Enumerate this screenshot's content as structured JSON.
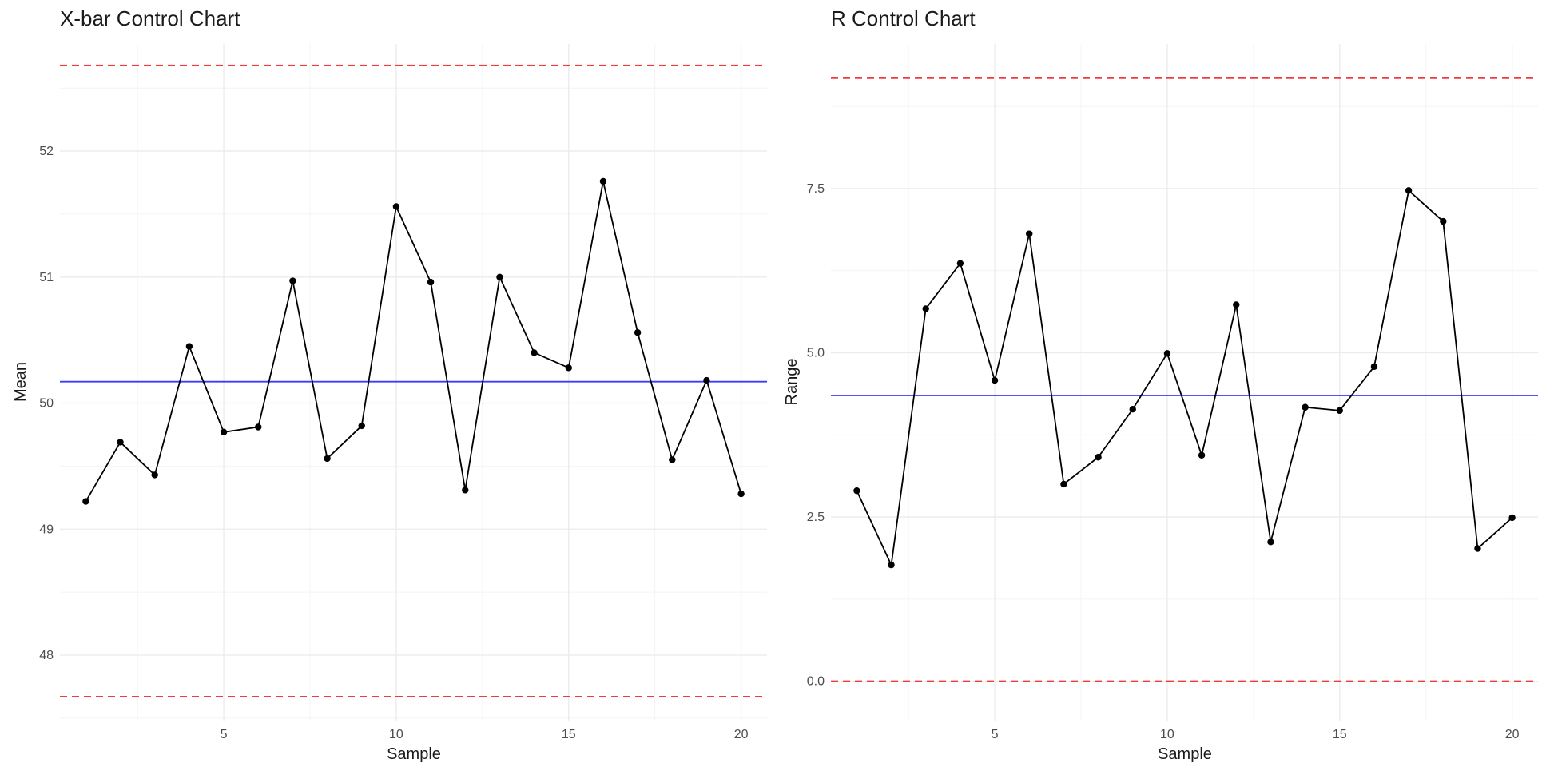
{
  "chart_data": [
    {
      "type": "line",
      "title": "X-bar Control Chart",
      "xlabel": "Sample",
      "ylabel": "Mean",
      "xlim": [
        0.25,
        20.75
      ],
      "ylim": [
        47.48,
        52.85
      ],
      "x_ticks": [
        5,
        10,
        15,
        20
      ],
      "x_tick_labels": [
        "5",
        "10",
        "15",
        "20"
      ],
      "y_ticks": [
        48,
        49,
        50,
        51,
        52
      ],
      "y_tick_labels": [
        "48",
        "49",
        "50",
        "51",
        "52"
      ],
      "grid": true,
      "x": [
        1,
        2,
        3,
        4,
        5,
        6,
        7,
        8,
        9,
        10,
        11,
        12,
        13,
        14,
        15,
        16,
        17,
        18,
        19,
        20
      ],
      "series": [
        {
          "values": [
            49.22,
            49.69,
            49.43,
            50.45,
            49.77,
            49.81,
            50.97,
            49.56,
            49.82,
            51.56,
            50.96,
            49.31,
            51.0,
            50.4,
            50.28,
            51.76,
            50.56,
            49.55,
            50.18,
            49.28
          ],
          "color": "#000000"
        }
      ],
      "reference_lines": [
        {
          "role": "center",
          "value": 50.17,
          "color": "#3b3bff",
          "style": "solid"
        },
        {
          "role": "upper-control-limit",
          "value": 52.68,
          "color": "#f03b3b",
          "style": "dashed"
        },
        {
          "role": "lower-control-limit",
          "value": 47.67,
          "color": "#f03b3b",
          "style": "dashed"
        }
      ]
    },
    {
      "type": "line",
      "title": "R Control Chart",
      "xlabel": "Sample",
      "ylabel": "Range",
      "xlim": [
        0.25,
        20.75
      ],
      "ylim": [
        -0.6,
        9.7
      ],
      "x_ticks": [
        5,
        10,
        15,
        20
      ],
      "x_tick_labels": [
        "5",
        "10",
        "15",
        "20"
      ],
      "y_ticks": [
        0,
        2.5,
        5,
        7.5
      ],
      "y_tick_labels": [
        "0.0",
        "2.5",
        "5.0",
        "7.5"
      ],
      "grid": true,
      "x": [
        1,
        2,
        3,
        4,
        5,
        6,
        7,
        8,
        9,
        10,
        11,
        12,
        13,
        14,
        15,
        16,
        17,
        18,
        19,
        20
      ],
      "series": [
        {
          "values": [
            2.9,
            1.77,
            5.67,
            6.36,
            4.58,
            6.81,
            3.0,
            3.41,
            4.14,
            4.99,
            3.44,
            5.73,
            2.12,
            4.17,
            4.12,
            4.79,
            7.47,
            7.0,
            2.02,
            2.49
          ],
          "color": "#000000"
        }
      ],
      "reference_lines": [
        {
          "role": "center",
          "value": 4.35,
          "color": "#3b3bff",
          "style": "solid"
        },
        {
          "role": "upper-control-limit",
          "value": 9.18,
          "color": "#f03b3b",
          "style": "dashed"
        },
        {
          "role": "lower-control-limit",
          "value": 0.0,
          "color": "#f03b3b",
          "style": "dashed"
        }
      ]
    }
  ]
}
